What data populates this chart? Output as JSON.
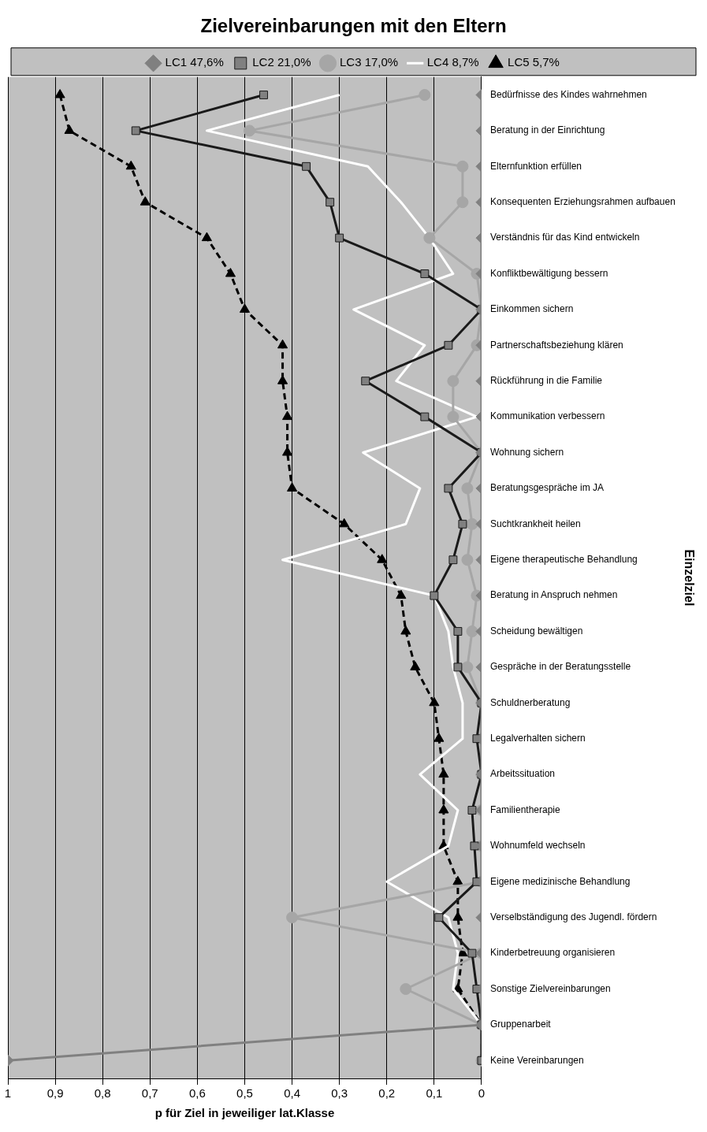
{
  "chart_data": {
    "type": "line",
    "orientation": "horizontal",
    "title": "Zielvereinbarungen mit den Eltern",
    "xlabel": "p für Ziel in jeweiliger lat.Klasse",
    "ylabel": "Einzelziel",
    "categories": [
      "Bedürfnisse des Kindes wahrnehmen",
      "Beratung in der Einrichtung",
      "Elternfunktion erfüllen",
      "Konsequenten Erziehungsrahmen aufbauen",
      "Verständnis für das Kind entwickeln",
      "Konfliktbewältigung bessern",
      "Einkommen sichern",
      "Partnerschaftsbeziehung klären",
      "Rückführung in die Familie",
      "Kommunikation verbessern",
      "Wohnung sichern",
      "Beratungsgespräche im JA",
      "Suchtkrankheit heilen",
      "Eigene therapeutische Behandlung",
      "Beratung in Anspruch nehmen",
      "Scheidung bewältigen",
      "Gespräche in der Beratungsstelle",
      "Schuldnerberatung",
      "Legalverhalten sichern",
      "Arbeitssituation",
      "Familientherapie",
      "Wohnumfeld wechseln",
      "Eigene medizinische Behandlung",
      "Verselbständigung des Jugendl. fördern",
      "Kinderbetreuung organisieren",
      "Sonstige Zielvereinbarungen",
      "Gruppenarbeit",
      "Keine Vereinbarungen"
    ],
    "series": [
      {
        "name": "LC1 47,6%",
        "color": "#808080",
        "marker": "diamond",
        "line_style": "solid",
        "values": [
          0,
          0,
          0,
          0,
          0,
          0,
          0,
          0,
          0,
          0,
          0,
          0,
          0,
          0,
          0,
          0,
          0,
          0,
          0,
          0,
          0,
          0,
          0,
          0,
          0,
          0,
          0,
          1
        ]
      },
      {
        "name": "LC2 21,0%",
        "color": "#1a1a1a",
        "marker": "square",
        "line_style": "solid",
        "values": [
          0.46,
          0.73,
          0.37,
          0.32,
          0.3,
          0.12,
          0,
          0.07,
          0.245,
          0.12,
          0,
          0.07,
          0.04,
          0.06,
          0.1,
          0.05,
          0.05,
          0,
          0.01,
          0,
          0.02,
          0.015,
          0.01,
          0.09,
          0.02,
          0.01,
          0,
          0
        ]
      },
      {
        "name": "LC3 17,0%",
        "color": "#a6a6a6",
        "marker": "circle",
        "line_style": "solid",
        "values": [
          0.12,
          0.49,
          0.04,
          0.04,
          0.11,
          0.01,
          0,
          0.01,
          0.06,
          0.06,
          0,
          0.03,
          0.02,
          0.03,
          0.01,
          0.02,
          0.03,
          0,
          0,
          0,
          0,
          0,
          0,
          0.4,
          0,
          0.16,
          0,
          0
        ]
      },
      {
        "name": "LC4 8,7%",
        "color": "#ffffff",
        "marker": "none",
        "line_style": "solid",
        "values": [
          0.3,
          0.58,
          0.24,
          0.17,
          0.11,
          0.06,
          0.27,
          0.12,
          0.18,
          0.01,
          0.25,
          0.13,
          0.16,
          0.42,
          0.1,
          0.07,
          0.06,
          0.04,
          0.04,
          0.13,
          0.05,
          0.07,
          0.2,
          0.07,
          0.05,
          0.06,
          0,
          0
        ]
      },
      {
        "name": "LC5 5,7%",
        "color": "#000000",
        "marker": "triangle",
        "line_style": "dashed",
        "values": [
          0.89,
          0.87,
          0.74,
          0.71,
          0.58,
          0.53,
          0.5,
          0.42,
          0.42,
          0.41,
          0.41,
          0.4,
          0.29,
          0.21,
          0.17,
          0.16,
          0.14,
          0.1,
          0.09,
          0.08,
          0.08,
          0.08,
          0.05,
          0.05,
          0.04,
          0.05,
          0,
          0
        ]
      }
    ],
    "xlim": [
      1,
      0
    ],
    "xticks": [
      {
        "value": 1,
        "label": "1"
      },
      {
        "value": 0.9,
        "label": "0,9"
      },
      {
        "value": 0.8,
        "label": "0,8"
      },
      {
        "value": 0.7,
        "label": "0,7"
      },
      {
        "value": 0.6,
        "label": "0,6"
      },
      {
        "value": 0.5,
        "label": "0,5"
      },
      {
        "value": 0.4,
        "label": "0,4"
      },
      {
        "value": 0.3,
        "label": "0,3"
      },
      {
        "value": 0.2,
        "label": "0,2"
      },
      {
        "value": 0.1,
        "label": "0,1"
      },
      {
        "value": 0,
        "label": "0"
      }
    ],
    "grid": "x",
    "legend": "top"
  }
}
